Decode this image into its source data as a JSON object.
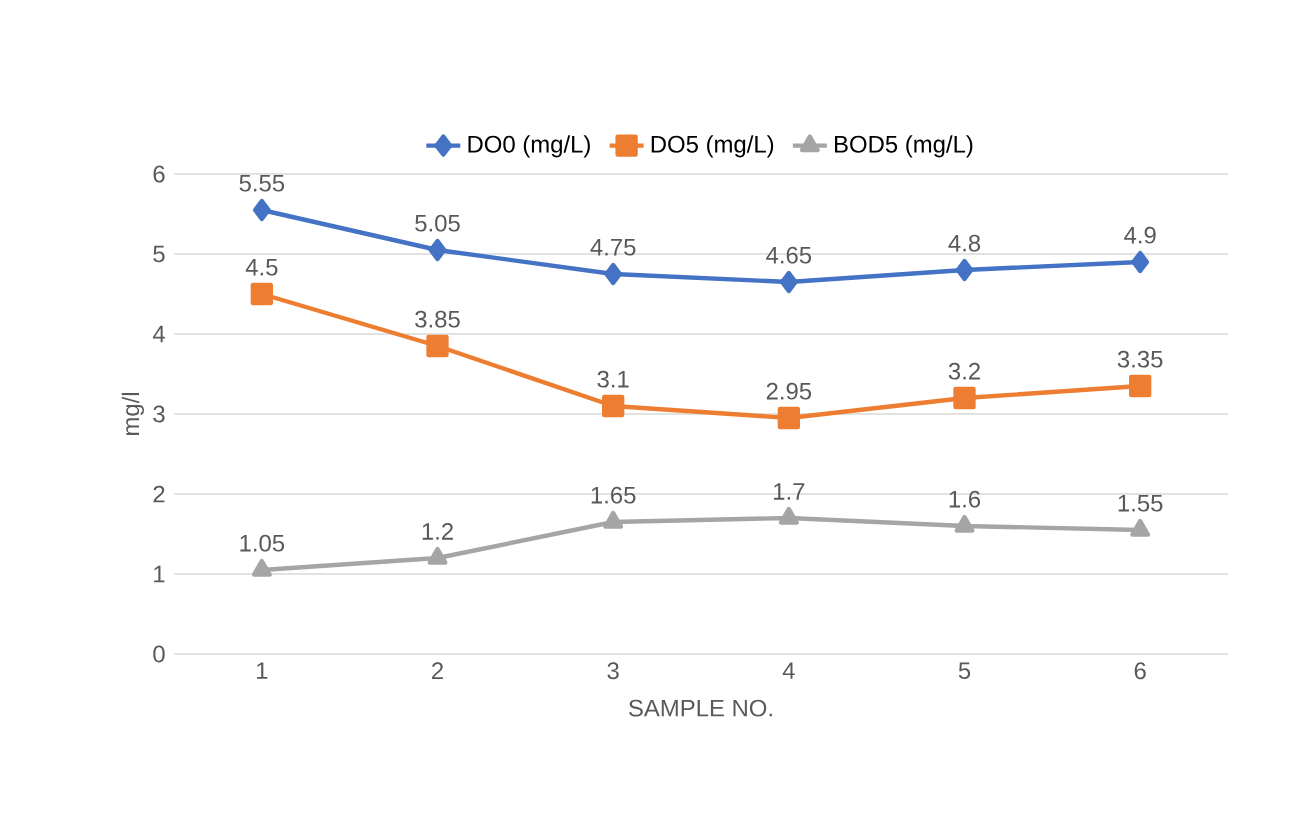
{
  "chart_data": {
    "type": "line",
    "xlabel": "SAMPLE NO.",
    "ylabel": "mg/l",
    "categories": [
      "1",
      "2",
      "3",
      "4",
      "5",
      "6"
    ],
    "series": [
      {
        "name": "DO0 (mg/L)",
        "color": "#4472c4",
        "marker": "diamond",
        "values": [
          5.55,
          5.05,
          4.75,
          4.65,
          4.8,
          4.9
        ]
      },
      {
        "name": "DO5 (mg/L)",
        "color": "#ed7d31",
        "marker": "square",
        "values": [
          4.5,
          3.85,
          3.1,
          2.95,
          3.2,
          3.35
        ]
      },
      {
        "name": "BOD5 (mg/L)",
        "color": "#a5a5a5",
        "marker": "triangle",
        "values": [
          1.05,
          1.2,
          1.65,
          1.7,
          1.6,
          1.55
        ]
      }
    ],
    "ylim": [
      0,
      6
    ],
    "yticks": [
      0,
      1,
      2,
      3,
      4,
      5,
      6
    ],
    "grid": "y",
    "legend": "top",
    "data_labels": true
  }
}
